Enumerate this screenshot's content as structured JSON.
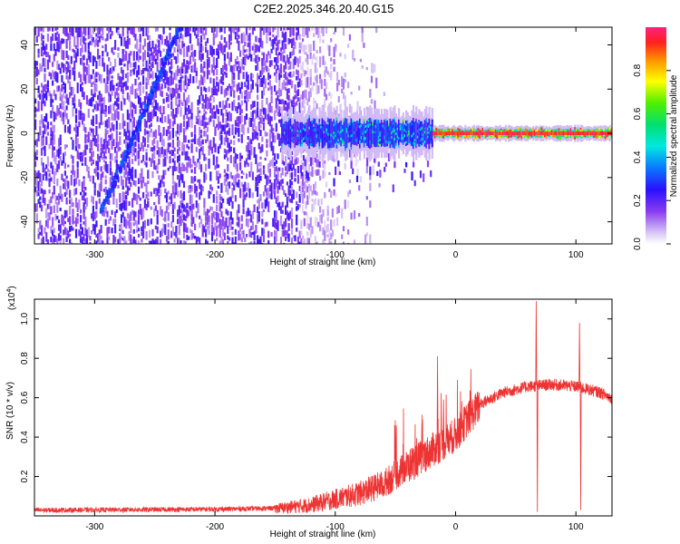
{
  "title": "C2E2.2025.346.20.40.G15",
  "chart_data": [
    {
      "type": "heatmap",
      "name": "spectrogram",
      "xlabel": "Height of straight line (km)",
      "ylabel": "Frequency (Hz)",
      "xlim": [
        -350,
        130
      ],
      "ylim": [
        -50,
        48
      ],
      "xticks": [
        -300,
        -200,
        -100,
        0,
        100
      ],
      "yticks": [
        -40,
        -20,
        0,
        20,
        40
      ],
      "xtick_labels": [
        "-300",
        "-200",
        "-100",
        "0",
        "100"
      ],
      "ytick_labels": [
        "-40",
        "-20",
        "0",
        "20",
        "40"
      ],
      "colorbar": {
        "label": "Normalized spectral amplitude",
        "range": [
          0,
          1
        ],
        "ticks": [
          0.0,
          0.2,
          0.4,
          0.6,
          0.8
        ],
        "tick_labels": [
          "0.0",
          "0.2",
          "0.4",
          "0.6",
          "0.8"
        ]
      },
      "features": {
        "noise_region_km": [
          -350,
          -130
        ],
        "scatter_fade_km": [
          -130,
          -60
        ],
        "signal_band_start_km": -145,
        "strong_tone_start_km": -20,
        "tone_frequency_hz": 0,
        "sweep_line": {
          "start_km": -295,
          "start_hz": -35,
          "end_km": -230,
          "end_hz": 48
        }
      }
    },
    {
      "type": "line",
      "name": "snr",
      "xlabel": "Height of straight line (km)",
      "ylabel": "SNR (10 * v/v)",
      "scale_label": "(x10",
      "scale_exponent": "4",
      "scale_close": ")",
      "color": "#ee3333",
      "xlim": [
        -350,
        130
      ],
      "ylim": [
        0,
        1.1
      ],
      "xticks": [
        -300,
        -200,
        -100,
        0,
        100
      ],
      "yticks": [
        0.2,
        0.4,
        0.6,
        0.8,
        1.0
      ],
      "xtick_labels": [
        "-300",
        "-200",
        "-100",
        "0",
        "100"
      ],
      "ytick_labels": [
        "0.2",
        "0.4",
        "0.6",
        "0.8",
        "1.0"
      ],
      "trend": {
        "x": [
          -350,
          -200,
          -150,
          -120,
          -100,
          -80,
          -60,
          -40,
          -20,
          0,
          10,
          20,
          40,
          60,
          80,
          100,
          120,
          130
        ],
        "y": [
          0.03,
          0.035,
          0.04,
          0.06,
          0.09,
          0.12,
          0.17,
          0.26,
          0.34,
          0.42,
          0.5,
          0.57,
          0.63,
          0.66,
          0.67,
          0.66,
          0.63,
          0.6
        ]
      },
      "spikes": [
        {
          "x": -15,
          "y": 0.81
        },
        {
          "x": -28,
          "y": 0.47
        },
        {
          "x": -10,
          "y": 0.59
        },
        {
          "x": 67,
          "y": 1.09
        },
        {
          "x": 68,
          "y": 0.02
        },
        {
          "x": 103,
          "y": 0.98
        },
        {
          "x": 104,
          "y": 0.03
        }
      ]
    }
  ]
}
